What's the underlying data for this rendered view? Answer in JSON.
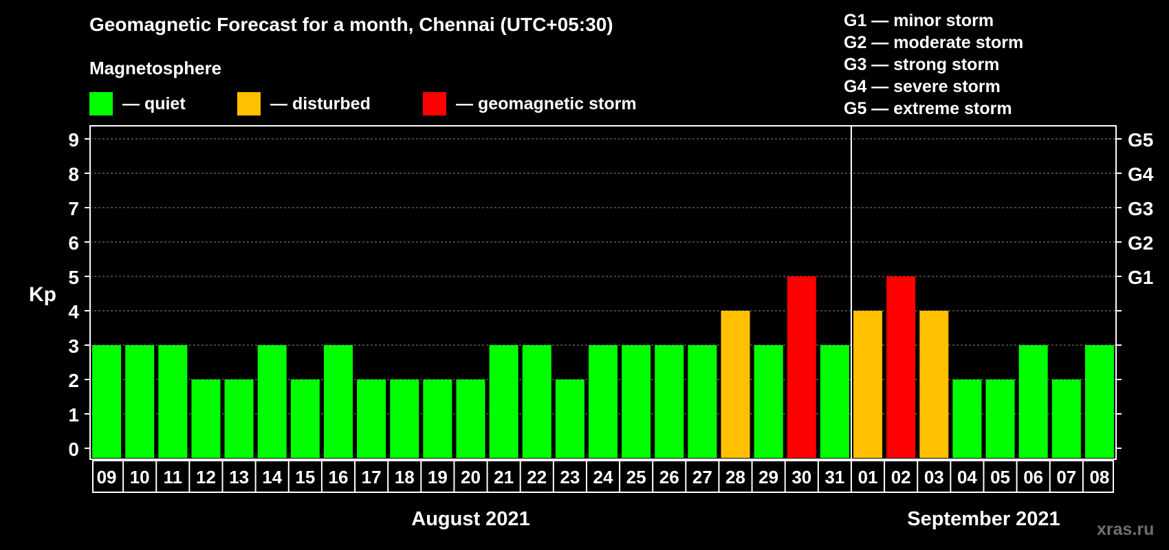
{
  "title": "Geomagnetic Forecast for a month, Chennai (UTC+05:30)",
  "legend": {
    "heading": "Magnetosphere",
    "items": [
      {
        "label": "— quiet",
        "color": "#00ff00"
      },
      {
        "label": "— disturbed",
        "color": "#ffc000"
      },
      {
        "label": "— geomagnetic storm",
        "color": "#ff0000"
      }
    ]
  },
  "g_legend": [
    "G1 — minor storm",
    "G2 — moderate storm",
    "G3 — strong storm",
    "G4 — severe storm",
    "G5 — extreme storm"
  ],
  "watermark": "xras.ru",
  "chart_data": {
    "type": "bar",
    "ylabel": "Kp",
    "ylim": [
      0,
      9
    ],
    "yticks": [
      0,
      1,
      2,
      3,
      4,
      5,
      6,
      7,
      8,
      9
    ],
    "right_axis_labels": [
      {
        "kp": 5,
        "label": "G1"
      },
      {
        "kp": 6,
        "label": "G2"
      },
      {
        "kp": 7,
        "label": "G3"
      },
      {
        "kp": 8,
        "label": "G4"
      },
      {
        "kp": 9,
        "label": "G5"
      }
    ],
    "grid": "horizontal dashed",
    "categories": [
      "09",
      "10",
      "11",
      "12",
      "13",
      "14",
      "15",
      "16",
      "17",
      "18",
      "19",
      "20",
      "21",
      "22",
      "23",
      "24",
      "25",
      "26",
      "27",
      "28",
      "29",
      "30",
      "31",
      "01",
      "02",
      "03",
      "04",
      "05",
      "06",
      "07",
      "08"
    ],
    "values": [
      3,
      3,
      3,
      2,
      2,
      3,
      2,
      3,
      2,
      2,
      2,
      2,
      3,
      3,
      2,
      3,
      3,
      3,
      3,
      4,
      3,
      5,
      3,
      4,
      5,
      4,
      2,
      2,
      3,
      2,
      3
    ],
    "status": [
      "quiet",
      "quiet",
      "quiet",
      "quiet",
      "quiet",
      "quiet",
      "quiet",
      "quiet",
      "quiet",
      "quiet",
      "quiet",
      "quiet",
      "quiet",
      "quiet",
      "quiet",
      "quiet",
      "quiet",
      "quiet",
      "quiet",
      "disturbed",
      "quiet",
      "storm",
      "quiet",
      "disturbed",
      "storm",
      "disturbed",
      "quiet",
      "quiet",
      "quiet",
      "quiet",
      "quiet"
    ],
    "colors": {
      "quiet": "#00ff00",
      "disturbed": "#ffc000",
      "storm": "#ff0000"
    },
    "months": [
      {
        "label": "August 2021",
        "days": 23
      },
      {
        "label": "September 2021",
        "days": 8
      }
    ]
  }
}
